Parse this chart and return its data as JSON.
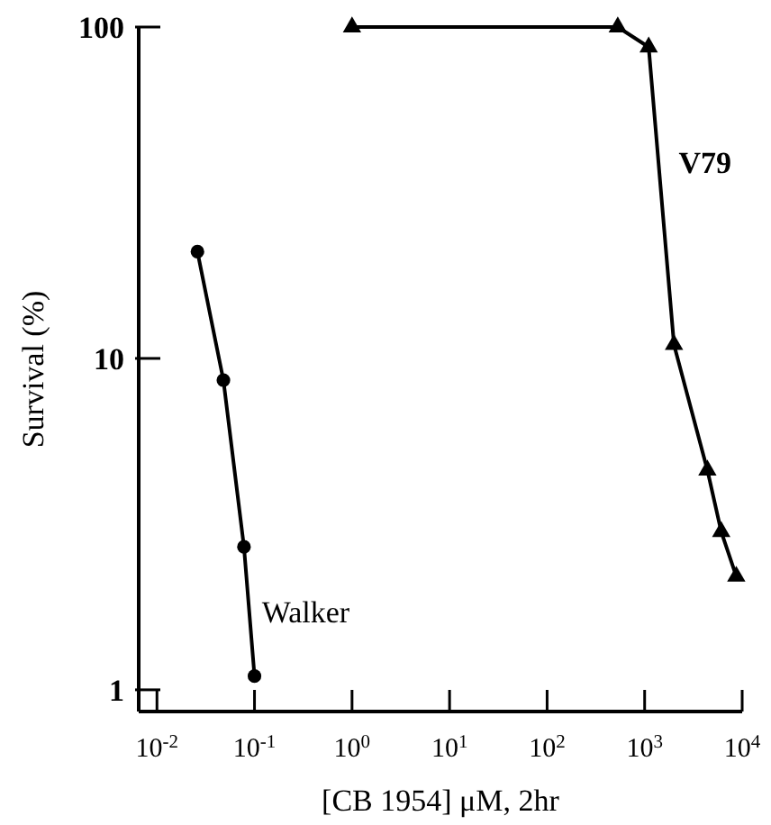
{
  "chart_data": {
    "type": "line",
    "xlabel": "[CB 1954] μM, 2hr",
    "ylabel": "Survival (%)",
    "log": "xy",
    "xlim": [
      0.0065,
      10000
    ],
    "ylim": [
      0.86,
      100
    ],
    "xticks": [
      {
        "value": 0.01,
        "label": "10$^{-2}$"
      },
      {
        "value": 0.1,
        "label": "10$^{-1}$"
      },
      {
        "value": 1,
        "label": "10$^{0}$"
      },
      {
        "value": 10,
        "label": "10$^{1}$"
      },
      {
        "value": 100,
        "label": "10$^{2}$"
      },
      {
        "value": 1000,
        "label": "10$^{3}$"
      },
      {
        "value": 10000,
        "label": "10$^{4}$"
      }
    ],
    "yticks": [
      1,
      10,
      100
    ],
    "grid": false,
    "series": [
      {
        "name": "Walker",
        "color": "#000000",
        "marker": "circle",
        "x": [
          0.026,
          0.048,
          0.078,
          0.1
        ],
        "values": [
          21,
          8.6,
          2.7,
          1.1
        ]
      },
      {
        "name": "V79",
        "color": "#000000",
        "marker": "triangle",
        "x": [
          1,
          530,
          1100,
          2000,
          4400,
          6100,
          8700
        ],
        "values": [
          100,
          100,
          87,
          11,
          4.6,
          3.0,
          2.2
        ]
      }
    ]
  }
}
